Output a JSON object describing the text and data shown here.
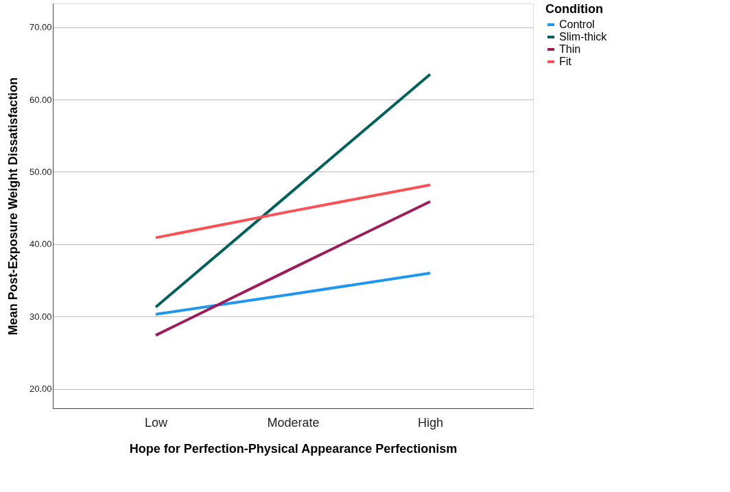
{
  "chart_data": {
    "type": "line",
    "xlabel": "Hope for Perfection-Physical Appearance Perfectionism",
    "ylabel": "Mean Post-Exposure Weight Dissatisfaction",
    "legend_title": "Condition",
    "categories": [
      "Low",
      "Moderate",
      "High"
    ],
    "series": [
      {
        "name": "Control",
        "color": "#1f96f0",
        "values": [
          30.3,
          33.1,
          36.0
        ]
      },
      {
        "name": "Slim-thick",
        "color": "#04605c",
        "values": [
          31.3,
          47.4,
          63.5
        ]
      },
      {
        "name": "Thin",
        "color": "#9c1b5a",
        "values": [
          27.4,
          36.7,
          45.9
        ]
      },
      {
        "name": "Fit",
        "color": "#fa5056",
        "values": [
          40.9,
          44.6,
          48.2
        ]
      }
    ],
    "ylim": [
      17.3,
      73.3
    ],
    "yticks": [
      {
        "value": 20,
        "label": "20.00"
      },
      {
        "value": 30,
        "label": "30.00"
      },
      {
        "value": 40,
        "label": "40.00"
      },
      {
        "value": 50,
        "label": "50.00"
      },
      {
        "value": 60,
        "label": "60.00"
      },
      {
        "value": 70,
        "label": "70.00"
      }
    ],
    "grid": "y",
    "legend": "top right",
    "marker": "none",
    "line_style": "solid"
  }
}
